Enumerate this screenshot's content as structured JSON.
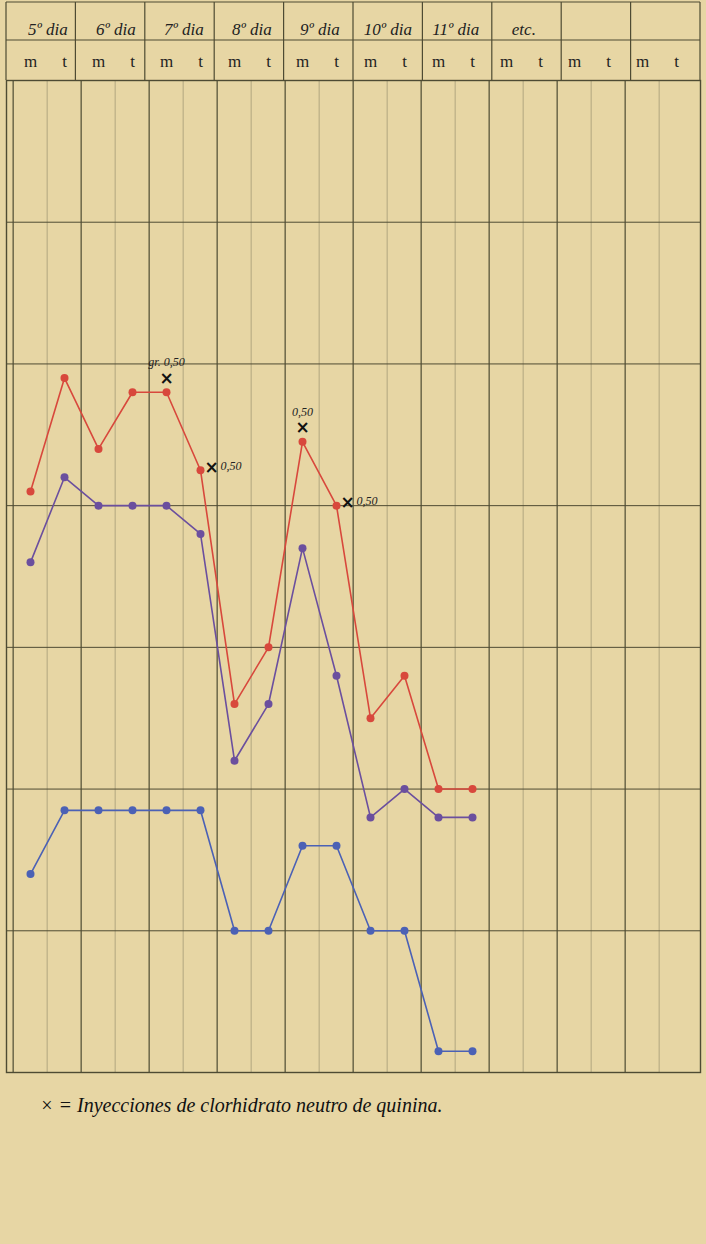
{
  "chart_data": {
    "type": "line",
    "days": [
      "5º dia",
      "6º dia",
      "7º dia",
      "8º dia",
      "9º dia",
      "10º dia",
      "11º dia",
      "etc.",
      null,
      null
    ],
    "categories": [
      "m",
      "t",
      "m",
      "t",
      "m",
      "t",
      "m",
      "t",
      "m",
      "t",
      "m",
      "t",
      "m",
      "t",
      "m",
      "t",
      "m",
      "t",
      "m",
      "t"
    ],
    "series": [
      {
        "color": "#d8483c",
        "marker": "circle",
        "line_style": "solid",
        "values": [
          4.1,
          4.9,
          4.4,
          4.8,
          4.8,
          4.25,
          2.6,
          3.0,
          4.45,
          4.0,
          2.5,
          2.8,
          2.0,
          2.0,
          null,
          null,
          null,
          null,
          null,
          null
        ]
      },
      {
        "color": "#6b4f9e",
        "marker": "circle",
        "line_style": "solid",
        "values": [
          3.6,
          4.2,
          4.0,
          4.0,
          4.0,
          3.8,
          2.2,
          2.6,
          3.7,
          2.8,
          1.8,
          2.0,
          1.8,
          1.8,
          null,
          null,
          null,
          null,
          null,
          null
        ]
      },
      {
        "color": "#4b61b5",
        "marker": "circle",
        "line_style": "solid",
        "values": [
          1.4,
          1.85,
          1.85,
          1.85,
          1.85,
          1.85,
          1.0,
          1.0,
          1.6,
          1.6,
          1.0,
          1.0,
          0.15,
          0.15,
          null,
          null,
          null,
          null,
          null,
          null
        ]
      }
    ],
    "ylim": [
      0,
      7
    ],
    "yticks": [
      0,
      1,
      2,
      3,
      4,
      5,
      6,
      7
    ],
    "grid": true,
    "tick_labels": "x",
    "annotations": {
      "symbol": "×",
      "items": [
        {
          "x": 4,
          "label": "gr. 0,50"
        },
        {
          "x": 5,
          "label": "0,50"
        },
        {
          "x": 8,
          "label": "0,50"
        },
        {
          "x": 9,
          "label": "0,50"
        }
      ]
    },
    "caption": "× = Inyecciones de clorhidrato neutro de quinina."
  }
}
